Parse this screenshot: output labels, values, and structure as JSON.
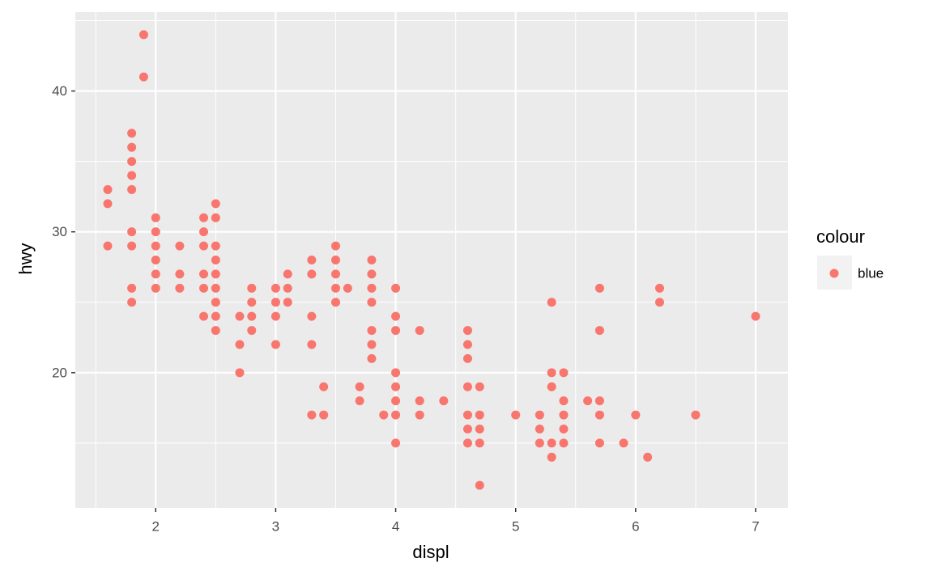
{
  "chart_data": {
    "type": "scatter",
    "xlabel": "displ",
    "ylabel": "hwy",
    "legend_title": "colour",
    "x": [
      1.6,
      1.6,
      1.6,
      1.8,
      1.8,
      1.8,
      1.8,
      1.8,
      1.8,
      1.8,
      1.8,
      1.8,
      1.9,
      1.9,
      2.0,
      2.0,
      2.0,
      2.0,
      2.0,
      2.0,
      2.2,
      2.2,
      2.2,
      2.4,
      2.4,
      2.4,
      2.4,
      2.4,
      2.4,
      2.5,
      2.5,
      2.5,
      2.5,
      2.5,
      2.5,
      2.5,
      2.5,
      2.5,
      2.7,
      2.7,
      2.7,
      2.8,
      2.8,
      2.8,
      2.8,
      3.0,
      3.0,
      3.0,
      3.0,
      3.1,
      3.1,
      3.1,
      3.3,
      3.3,
      3.3,
      3.3,
      3.3,
      3.4,
      3.4,
      3.5,
      3.5,
      3.5,
      3.5,
      3.5,
      3.6,
      3.7,
      3.7,
      3.8,
      3.8,
      3.8,
      3.8,
      3.8,
      3.8,
      3.8,
      3.9,
      4.0,
      4.0,
      4.0,
      4.0,
      4.0,
      4.0,
      4.0,
      4.0,
      4.2,
      4.2,
      4.2,
      4.4,
      4.6,
      4.6,
      4.6,
      4.6,
      4.6,
      4.6,
      4.6,
      4.7,
      4.7,
      4.7,
      4.7,
      4.7,
      5.0,
      5.2,
      5.2,
      5.2,
      5.3,
      5.3,
      5.3,
      5.3,
      5.3,
      5.4,
      5.4,
      5.4,
      5.4,
      5.4,
      5.6,
      5.7,
      5.7,
      5.7,
      5.7,
      5.7,
      5.9,
      6.0,
      6.1,
      6.2,
      6.2,
      6.5,
      7.0
    ],
    "series": [
      {
        "name": "blue",
        "color": "#F8766D",
        "values": [
          33,
          32,
          29,
          37,
          36,
          35,
          34,
          33,
          30,
          29,
          26,
          25,
          44,
          41,
          31,
          30,
          29,
          28,
          27,
          26,
          29,
          27,
          26,
          31,
          30,
          29,
          27,
          26,
          24,
          32,
          31,
          29,
          28,
          27,
          26,
          25,
          24,
          23,
          24,
          22,
          20,
          26,
          25,
          24,
          23,
          26,
          25,
          24,
          22,
          27,
          26,
          25,
          28,
          27,
          24,
          22,
          17,
          19,
          17,
          29,
          28,
          27,
          26,
          25,
          26,
          19,
          18,
          28,
          27,
          26,
          25,
          23,
          22,
          21,
          17,
          26,
          24,
          23,
          20,
          19,
          18,
          17,
          15,
          23,
          18,
          17,
          18,
          23,
          22,
          21,
          19,
          17,
          16,
          15,
          19,
          17,
          16,
          15,
          12,
          17,
          17,
          16,
          15,
          25,
          20,
          19,
          15,
          14,
          20,
          18,
          17,
          16,
          15,
          18,
          26,
          23,
          18,
          17,
          15,
          15,
          17,
          14,
          26,
          25,
          17,
          24
        ]
      }
    ],
    "xlim": [
      1.33,
      7.27
    ],
    "xticks": [
      2,
      3,
      4,
      5,
      6,
      7
    ],
    "ylim": [
      10.4,
      45.6
    ],
    "yticks": [
      20,
      30,
      40
    ],
    "grid": true,
    "legend": "right"
  }
}
